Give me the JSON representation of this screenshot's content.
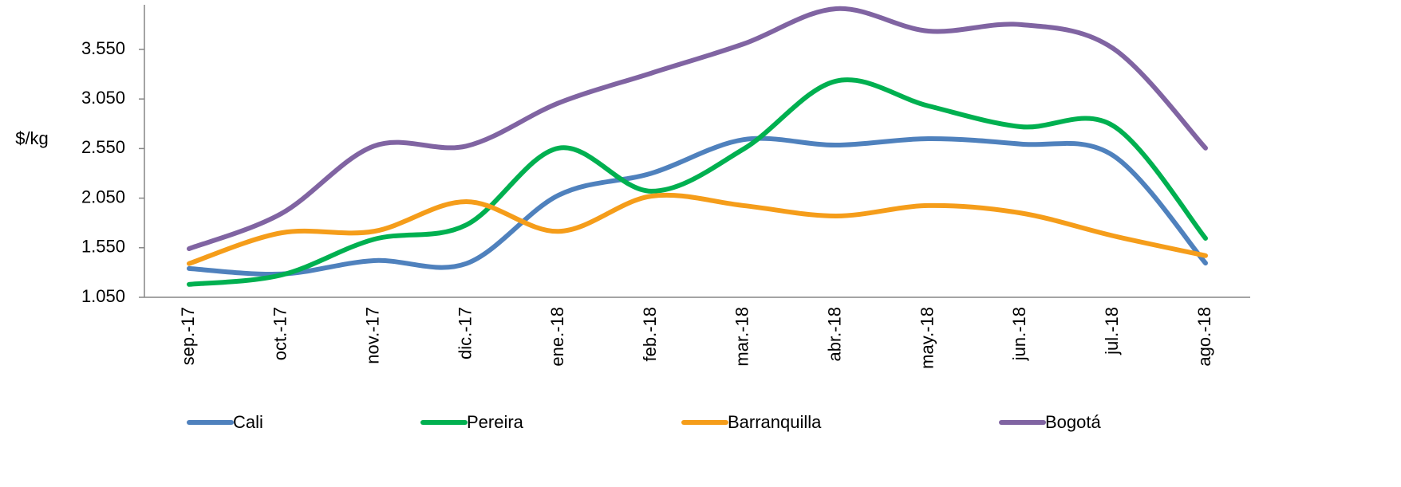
{
  "chart_data": {
    "type": "line",
    "y_label": "$/kg",
    "categories": [
      "sep.-17",
      "oct.-17",
      "nov.-17",
      "dic.-17",
      "ene.-18",
      "feb.-18",
      "mar.-18",
      "abr.-18",
      "may.-18",
      "jun.-18",
      "jul.-18",
      "ago.-18"
    ],
    "series": [
      {
        "name": "Cali",
        "color": "#4f81bd",
        "values": [
          1340,
          1285,
          1420,
          1390,
          2080,
          2300,
          2640,
          2585,
          2650,
          2595,
          2480,
          1395
        ]
      },
      {
        "name": "Pereira",
        "color": "#00b050",
        "values": [
          1180,
          1275,
          1635,
          1780,
          2555,
          2120,
          2545,
          3230,
          2980,
          2770,
          2780,
          1645
        ]
      },
      {
        "name": "Barranquilla",
        "color": "#f59d1a",
        "values": [
          1390,
          1700,
          1715,
          2015,
          1715,
          2070,
          1975,
          1870,
          1975,
          1900,
          1670,
          1470
        ]
      },
      {
        "name": "Bogotá",
        "color": "#8064a2",
        "values": [
          1540,
          1895,
          2575,
          2575,
          3010,
          3310,
          3605,
          3960,
          3735,
          3800,
          3560,
          2555
        ]
      }
    ],
    "ylim": [
      1050,
      4000
    ],
    "yticks": [
      {
        "value": 1050,
        "label": "1.050"
      },
      {
        "value": 1550,
        "label": "1.550"
      },
      {
        "value": 2050,
        "label": "2.050"
      },
      {
        "value": 2550,
        "label": "2.550"
      },
      {
        "value": 3050,
        "label": "3.050"
      },
      {
        "value": 3550,
        "label": "3.550"
      }
    ],
    "smooth": true,
    "legend": "bottom"
  }
}
